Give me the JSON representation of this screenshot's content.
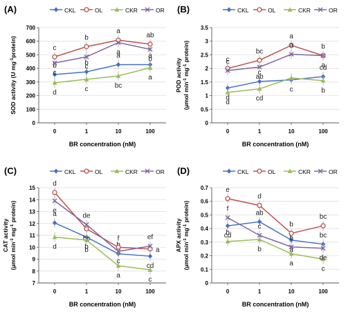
{
  "colors": {
    "CKL": "#4472C4",
    "OL": "#C0504D",
    "CKR": "#9BBB59",
    "OR": "#8064A2"
  },
  "chart_data": [
    {
      "panel_label": "(A)",
      "type": "line",
      "xlabel": "BR concentration (nM)",
      "ylabel_lines": [
        "SOD activity (U mg",
        "protein)"
      ],
      "ylabel_super": "-1",
      "categories": [
        "0",
        "1",
        "10",
        "100"
      ],
      "ylim": [
        0,
        700
      ],
      "yticks": [
        "0",
        "100",
        "200",
        "300",
        "400",
        "500",
        "600",
        "700"
      ],
      "legend": [
        "CKL",
        "OL",
        "CKR",
        "OR"
      ],
      "series": [
        {
          "name": "CKL",
          "values": [
            355,
            375,
            428,
            428
          ],
          "letters": [
            "b",
            "b",
            "a",
            "a"
          ],
          "letter_pos": [
            "above",
            "above",
            "above",
            "above"
          ]
        },
        {
          "name": "OL",
          "values": [
            485,
            560,
            608,
            578
          ],
          "letters": [
            "c",
            "b",
            "a",
            "ab"
          ],
          "letter_pos": [
            "above",
            "above",
            "above",
            "above"
          ]
        },
        {
          "name": "CKR",
          "values": [
            295,
            320,
            345,
            405
          ],
          "letters": [
            "d",
            "c",
            "bc",
            "a"
          ],
          "letter_pos": [
            "below",
            "below",
            "below",
            "below"
          ]
        },
        {
          "name": "OR",
          "values": [
            440,
            485,
            590,
            540
          ],
          "letters": [
            "c",
            "c",
            "a",
            "b"
          ],
          "letter_pos": [
            "below",
            "below",
            "below",
            "below"
          ]
        }
      ]
    },
    {
      "panel_label": "(B)",
      "type": "line",
      "xlabel": "BR concentration (nM)",
      "ylabel_lines": [
        "POD activity",
        "(μmol min",
        "mg",
        "protein)"
      ],
      "ylabel_super": "-1",
      "categories": [
        "0",
        "1",
        "10",
        "100"
      ],
      "ylim": [
        0,
        3.5
      ],
      "yticks": [
        "0",
        "0.5",
        "1",
        "1.5",
        "2",
        "2.5",
        "3",
        "3.5"
      ],
      "legend": [
        "CKL",
        "OL",
        "CKR",
        "OR"
      ],
      "series": [
        {
          "name": "CKL",
          "values": [
            1.28,
            1.52,
            1.58,
            1.7
          ],
          "letters": [
            "d",
            "c",
            "c",
            "cd"
          ],
          "letter_pos": [
            "below",
            "above",
            "below",
            "above"
          ]
        },
        {
          "name": "OL",
          "values": [
            2.0,
            2.3,
            2.85,
            2.47
          ],
          "letters": [
            "c",
            "bc",
            "a",
            "b"
          ],
          "letter_pos": [
            "above",
            "above",
            "above",
            "above"
          ]
        },
        {
          "name": "CKR",
          "values": [
            1.12,
            1.25,
            1.65,
            1.55
          ],
          "letters": [
            "d",
            "cd",
            "",
            "b"
          ],
          "letter_pos": [
            "below",
            "below",
            "below",
            "below"
          ]
        },
        {
          "name": "OR",
          "values": [
            1.92,
            2.05,
            2.52,
            2.47
          ],
          "letters": [
            "c",
            "ab",
            "a",
            "a"
          ],
          "letter_pos": [
            "above",
            "below",
            "above",
            "below"
          ]
        }
      ]
    },
    {
      "panel_label": "(C)",
      "type": "line",
      "xlabel": "BR concentration (nM)",
      "ylabel_lines": [
        "CAT activity",
        "(μmol min",
        "mg",
        "protein)"
      ],
      "ylabel_super": "-1",
      "categories": [
        "0",
        "1",
        "10",
        "100"
      ],
      "ylim": [
        7,
        15
      ],
      "yticks": [
        "7",
        "8",
        "9",
        "10",
        "11",
        "12",
        "13",
        "14",
        "15"
      ],
      "legend": [
        "CKL",
        "OL",
        "CKR",
        "OR"
      ],
      "series": [
        {
          "name": "CKL",
          "values": [
            12.05,
            10.85,
            9.45,
            9.25
          ],
          "letters": [
            "a",
            "b",
            "b",
            "cd"
          ],
          "letter_pos": [
            "above",
            "below",
            "above",
            "below"
          ]
        },
        {
          "name": "OL",
          "values": [
            14.6,
            11.55,
            10.0,
            9.85
          ],
          "letters": [
            "d",
            "bc",
            "f",
            "a"
          ],
          "letter_pos": [
            "above",
            "below",
            "above",
            "right"
          ]
        },
        {
          "name": "CKR",
          "values": [
            10.85,
            10.6,
            8.45,
            8.1
          ],
          "letters": [
            "d",
            "b",
            "a",
            "c"
          ],
          "letter_pos": [
            "below",
            "below",
            "below",
            "below"
          ]
        },
        {
          "name": "OR",
          "values": [
            13.9,
            11.9,
            9.65,
            10.1
          ],
          "letters": [
            "e",
            "de",
            "c",
            "ef"
          ],
          "letter_pos": [
            "below",
            "above",
            "below",
            "above"
          ]
        }
      ]
    },
    {
      "panel_label": "(D)",
      "type": "line",
      "xlabel": "BR concentration (nM)",
      "ylabel_lines": [
        "APX activity",
        "(μmol min",
        "mg",
        "protein)"
      ],
      "ylabel_super": "-1",
      "categories": [
        "0",
        "1",
        "10",
        "100"
      ],
      "ylim": [
        0,
        0.7
      ],
      "yticks": [
        "0",
        "0.1",
        "0.2",
        "0.3",
        "0.4",
        "0.5",
        "0.6",
        "0.7"
      ],
      "legend": [
        "CKL",
        "OL",
        "CKR",
        "OR"
      ],
      "series": [
        {
          "name": "CKL",
          "values": [
            0.42,
            0.45,
            0.315,
            0.285
          ],
          "letters": [
            "cd",
            "ab",
            "a",
            "bc"
          ],
          "letter_pos": [
            "below",
            "above",
            "below",
            "above"
          ]
        },
        {
          "name": "OL",
          "values": [
            0.62,
            0.57,
            0.365,
            0.42
          ],
          "letters": [
            "e",
            "d",
            "b",
            "bc"
          ],
          "letter_pos": [
            "above",
            "above",
            "above",
            "above"
          ]
        },
        {
          "name": "CKR",
          "values": [
            0.305,
            0.32,
            0.215,
            0.175
          ],
          "letters": [
            "b",
            "b",
            "a",
            "c"
          ],
          "letter_pos": [
            "above",
            "below",
            "below",
            "below"
          ]
        },
        {
          "name": "OR",
          "values": [
            0.48,
            0.35,
            0.265,
            0.255
          ],
          "letters": [
            "f",
            "c",
            "b",
            "de"
          ],
          "letter_pos": [
            "above",
            "above",
            "above",
            "below"
          ]
        }
      ]
    }
  ]
}
